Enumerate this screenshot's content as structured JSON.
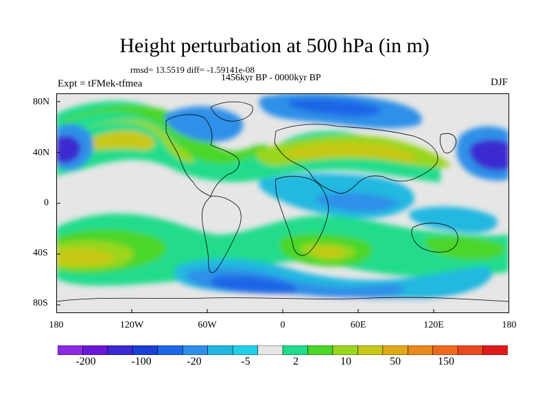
{
  "title": "Height perturbation at 500 hPa (in m)",
  "stats": "rmsd= 13.5519 diff= -1.59141e-08",
  "period": "1456kyr BP - 0000kyr BP",
  "experiment": "Expt = tFMek-tfmea",
  "season": "DJF",
  "y_ticks": [
    "80N",
    "40N",
    "0",
    "40S",
    "80S"
  ],
  "x_ticks": [
    "180",
    "120W",
    "60W",
    "0",
    "60E",
    "120E",
    "180"
  ],
  "colorbar": {
    "labels": [
      "-200",
      "-100",
      "-20",
      "-5",
      "2",
      "10",
      "50",
      "150"
    ],
    "colors": [
      "#8a2be2",
      "#6a18d8",
      "#3a2ad0",
      "#1a40d8",
      "#1e66e6",
      "#2e90e8",
      "#22b8e0",
      "#1fd0e8",
      "#e6e6e6",
      "#20dc8c",
      "#4cd62a",
      "#9ad61e",
      "#c8c819",
      "#e0a81a",
      "#e88a1e",
      "#f06a1e",
      "#e84820",
      "#e01a1a"
    ]
  },
  "map_colors": {
    "neutral": "#e6e6e6",
    "light_blue": "#1fd0e8",
    "cyan": "#22b8e0",
    "mid_blue": "#2e90e8",
    "blue": "#1e66e6",
    "deep_blue": "#3a2ad0",
    "light_green": "#20dc8c",
    "green": "#4cd62a",
    "yellow_green": "#9ad61e",
    "olive": "#c8c819",
    "orange": "#e0a81a"
  }
}
